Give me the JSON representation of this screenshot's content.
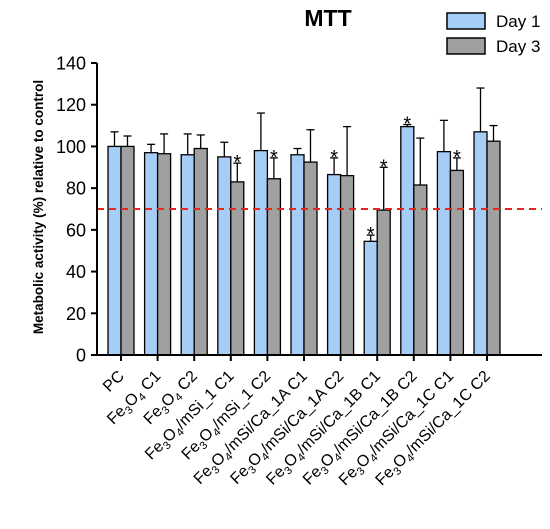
{
  "chart_data": {
    "type": "bar",
    "title": "MTT",
    "ylabel": "Metabolic activity (%) relative to control",
    "xlabel": "",
    "ylim": [
      0,
      140
    ],
    "yticks": [
      "0",
      "20",
      "40",
      "60",
      "80",
      "100",
      "120",
      "140"
    ],
    "reference_line": {
      "value": 70,
      "style": "dashed",
      "color": "#e8261c"
    },
    "categories": [
      [
        "PC"
      ],
      [
        "Fe",
        "3",
        "O",
        "4",
        " C1"
      ],
      [
        "Fe",
        "3",
        "O",
        "4",
        " C2"
      ],
      [
        "Fe",
        "3",
        "O",
        "4",
        "/mSi_1 C1"
      ],
      [
        "Fe",
        "3",
        "O",
        "4",
        "/mSi_1 C2"
      ],
      [
        "Fe",
        "3",
        "O",
        "4",
        "/mSi/Ca_1A C1"
      ],
      [
        "Fe",
        "3",
        "O",
        "4",
        "/mSi/Ca_1A C2"
      ],
      [
        "Fe",
        "3",
        "O",
        "4",
        "/mSi/Ca_1B C1"
      ],
      [
        "Fe",
        "3",
        "O",
        "4",
        "/mSi/Ca_1B C2"
      ],
      [
        "Fe",
        "3",
        "O",
        "4",
        "/mSi/Ca_1C C1"
      ],
      [
        "Fe",
        "3",
        "O",
        "4",
        "/mSi/Ca_1C C2"
      ]
    ],
    "series": [
      {
        "name": "Day 1",
        "color": "#a6cdf6",
        "values": [
          100,
          97,
          96,
          95,
          98,
          96,
          86.5,
          54.5,
          109.5,
          97.5,
          107
        ],
        "errors": [
          7,
          4,
          10,
          7,
          18,
          3,
          8,
          3,
          1,
          15,
          21
        ],
        "significance": [
          "",
          "",
          "",
          "",
          "",
          "",
          "*",
          "*",
          "*",
          "",
          ""
        ]
      },
      {
        "name": "Day 3",
        "color": "#a0a0a0",
        "values": [
          100,
          96.5,
          99,
          83,
          84.5,
          92.5,
          86,
          69.5,
          81.5,
          88.5,
          102.5
        ],
        "errors": [
          5,
          9.5,
          6.5,
          9,
          10,
          15.5,
          23.5,
          20.5,
          22.5,
          6,
          7.5
        ],
        "significance": [
          "",
          "",
          "",
          "*",
          "*",
          "",
          "",
          "*",
          "",
          "*",
          ""
        ]
      }
    ],
    "legend_position": "top-right",
    "grid": false
  }
}
